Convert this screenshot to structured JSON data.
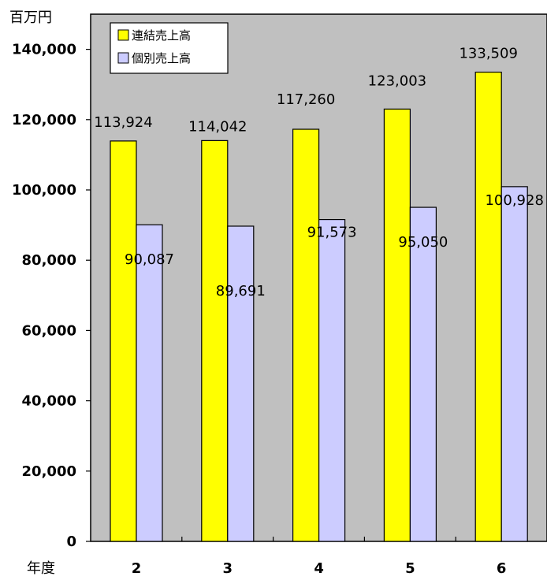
{
  "chart_data": {
    "type": "bar",
    "ylabel": "百万円",
    "xlabel": "年度",
    "categories": [
      "2",
      "3",
      "4",
      "5",
      "6"
    ],
    "series": [
      {
        "name": "連結売上高",
        "color": "#ffff00",
        "values": [
          113924,
          114042,
          117260,
          123003,
          133509
        ]
      },
      {
        "name": "個別売上高",
        "color": "#ccccff",
        "values": [
          90087,
          89691,
          91573,
          95050,
          100928
        ]
      }
    ],
    "data_labels": [
      [
        "113,924",
        "114,042",
        "117,260",
        "123,003",
        "133,509"
      ],
      [
        "90,087",
        "89,691",
        "91,573",
        "95,050",
        "100,928"
      ]
    ],
    "ylim": [
      0,
      150000
    ],
    "yticks": [
      0,
      20000,
      40000,
      60000,
      80000,
      100000,
      120000,
      140000
    ],
    "ytick_labels": [
      "0",
      "20,000",
      "40,000",
      "60,000",
      "80,000",
      "100,000",
      "120,000",
      "140,000"
    ],
    "plot_background": "#c0c0c0",
    "legend_position": "top-left",
    "grid": false
  }
}
